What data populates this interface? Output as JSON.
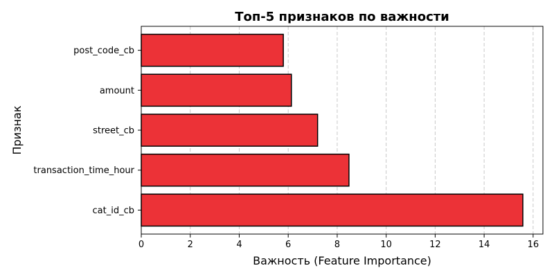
{
  "chart_data": {
    "type": "bar",
    "orientation": "horizontal",
    "title": "Топ-5 признаков по важности",
    "xlabel": "Важность (Feature Importance)",
    "ylabel": "Признак",
    "categories": [
      "cat_id_cb",
      "transaction_time_hour",
      "street_cb",
      "amount",
      "post_code_cb"
    ],
    "values": [
      15.58,
      8.48,
      7.2,
      6.13,
      5.8
    ],
    "xlim": [
      0,
      16.4
    ],
    "xticks": [
      0,
      2,
      4,
      6,
      8,
      10,
      12,
      14,
      16
    ],
    "grid": "x-dashed",
    "bar_color": "#ec3237",
    "edge_color": "#000000"
  }
}
